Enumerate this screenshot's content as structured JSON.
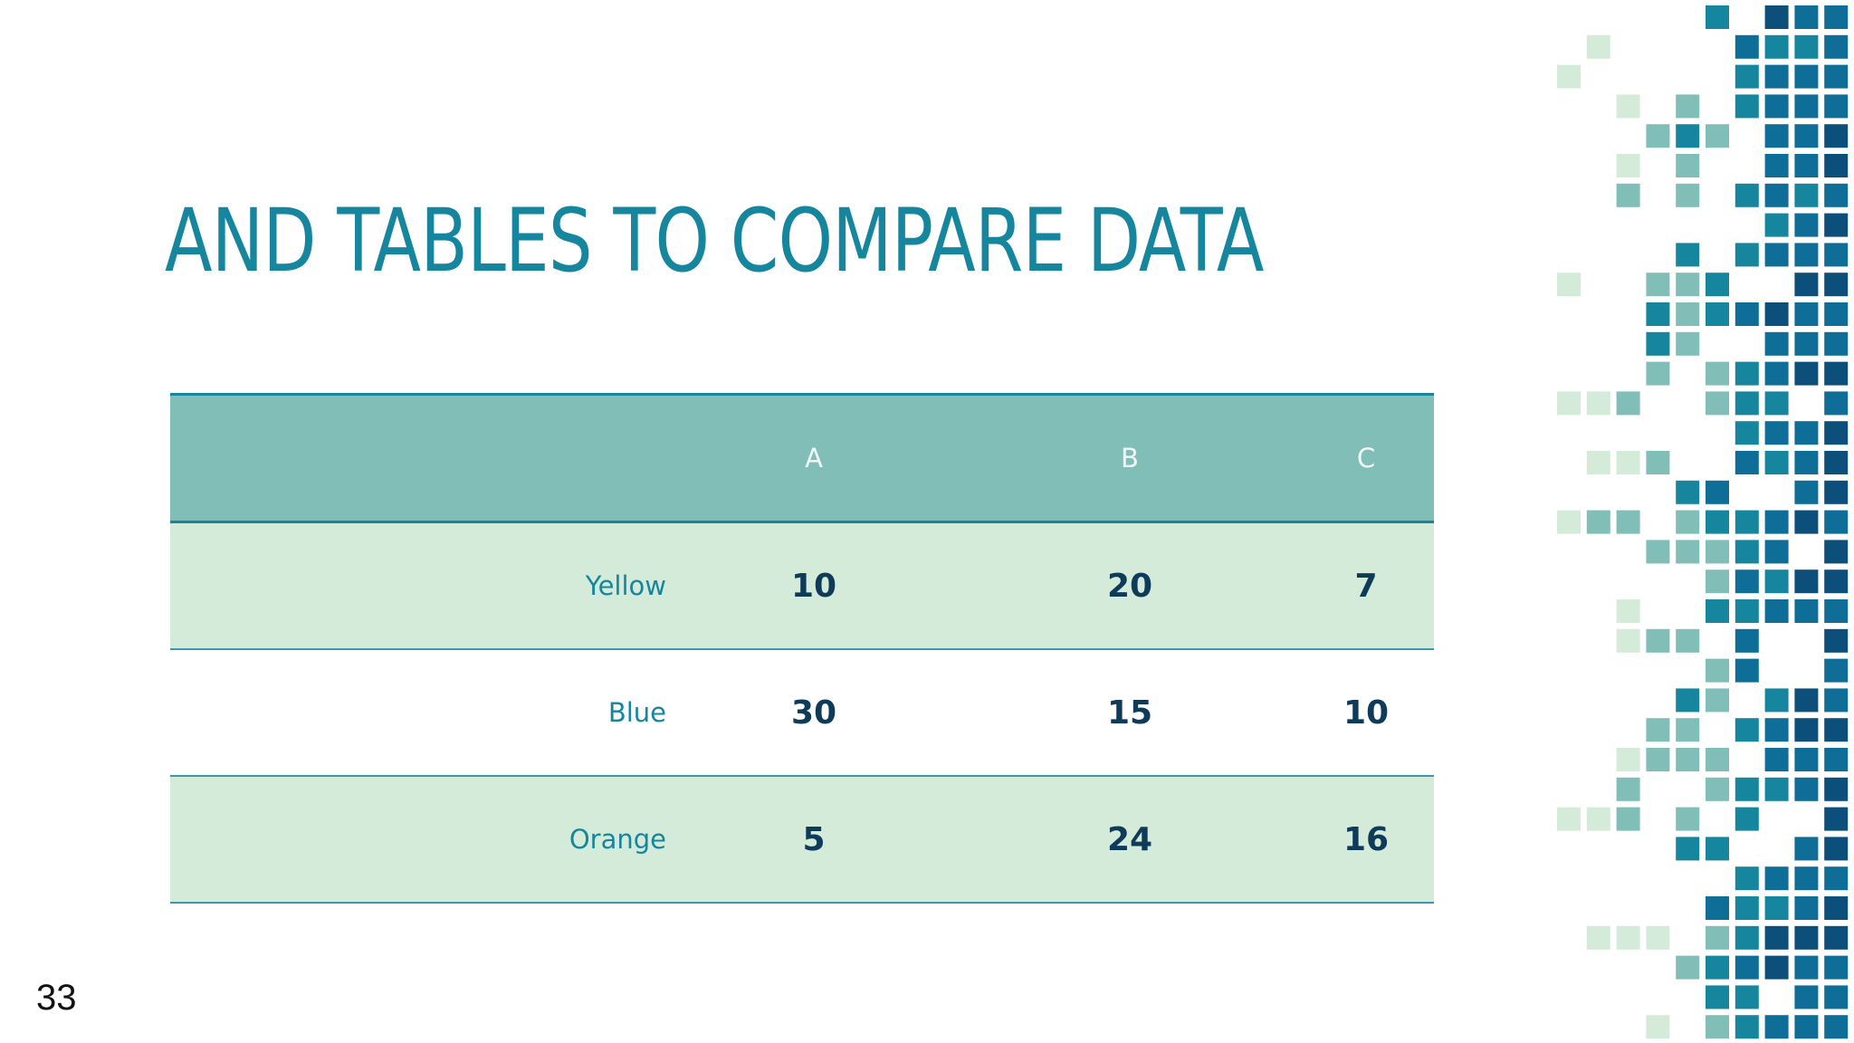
{
  "slide": {
    "title": "AND TABLES TO COMPARE DATA",
    "page_number": "33"
  },
  "table": {
    "headers": [
      "",
      "A",
      "B",
      "C"
    ],
    "rows": [
      {
        "label": "Yellow",
        "values": [
          "10",
          "20",
          "7"
        ]
      },
      {
        "label": "Blue",
        "values": [
          "30",
          "15",
          "10"
        ]
      },
      {
        "label": "Orange",
        "values": [
          "5",
          "24",
          "16"
        ]
      }
    ]
  },
  "colors": {
    "title": "#16869e",
    "header_bg": "#81beb8",
    "row_shaded": "#d5ebd9",
    "value_text": "#0d3b59",
    "mosaic": [
      "#d5ebd9",
      "#81beb8",
      "#16869e",
      "#0f6e97",
      "#0b4f7a"
    ]
  }
}
